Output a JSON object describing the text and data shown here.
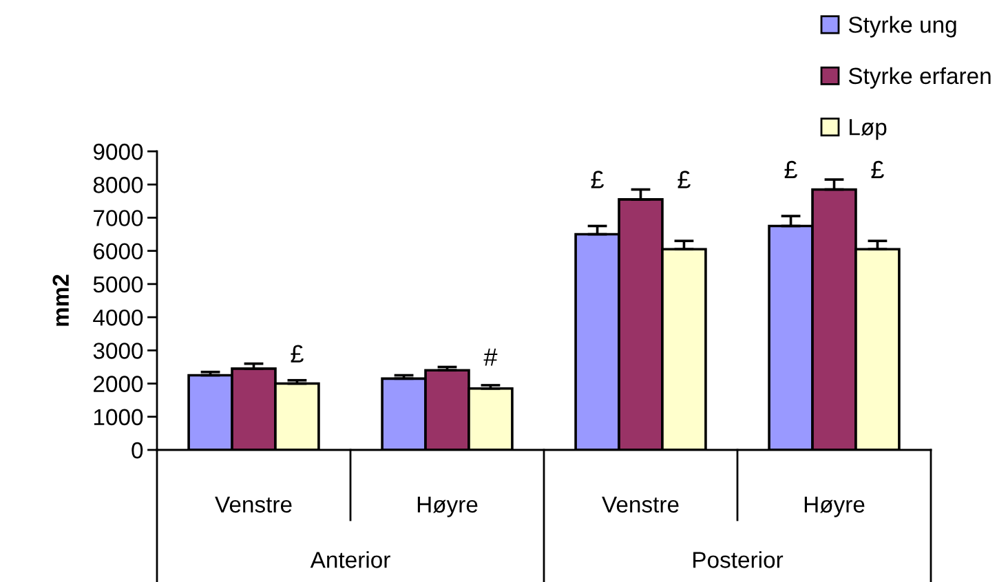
{
  "chart_data": {
    "type": "bar",
    "categories": [
      "Venstre",
      "Høyre",
      "Venstre",
      "Høyre"
    ],
    "ylabel": "mm2",
    "annotations": [
      "Anterior",
      "Posterior"
    ],
    "ylim": [
      0,
      9000
    ],
    "yticks": [
      0,
      1000,
      2000,
      3000,
      4000,
      5000,
      6000,
      7000,
      8000,
      9000
    ],
    "legend": "top right",
    "grid": false,
    "series": [
      {
        "name": "Styrke ung",
        "color": "#9999ff",
        "values": [
          2250,
          2150,
          6500,
          6750
        ],
        "errors": [
          [
            2250,
            2350
          ],
          [
            2150,
            2250
          ],
          [
            6500,
            6750
          ],
          [
            6750,
            7050
          ]
        ],
        "value_labels": [
          null,
          null,
          "£",
          "£"
        ]
      },
      {
        "name": "Styrke erfaren",
        "color": "#993366",
        "values": [
          2450,
          2400,
          7550,
          7850
        ],
        "errors": [
          [
            2450,
            2600
          ],
          [
            2400,
            2500
          ],
          [
            7550,
            7850
          ],
          [
            7850,
            8150
          ]
        ]
      },
      {
        "name": "Løp",
        "color": "#ffffcc",
        "values": [
          2000,
          1850,
          6050,
          6050
        ],
        "errors": [
          [
            2000,
            2100
          ],
          [
            1850,
            1950
          ],
          [
            6050,
            6300
          ],
          [
            6050,
            6300
          ]
        ],
        "value_labels": [
          "£",
          "#",
          "£",
          "£"
        ]
      }
    ]
  }
}
